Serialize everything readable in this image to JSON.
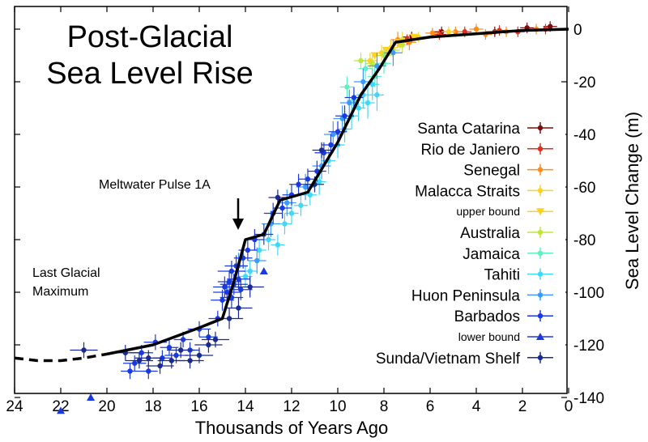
{
  "chart_data": {
    "type": "scatter",
    "title": [
      "Post-Glacial",
      "Sea Level Rise"
    ],
    "xlabel": "Thousands of Years Ago",
    "ylabel": "Sea Level Change (m)",
    "xlim": [
      24,
      0
    ],
    "ylim": [
      -150,
      5
    ],
    "x_ticks": [
      24,
      22,
      20,
      18,
      16,
      14,
      12,
      10,
      8,
      6,
      4,
      2,
      0
    ],
    "y_ticks": [
      0,
      -20,
      -40,
      -60,
      -80,
      -100,
      -120,
      -140
    ],
    "grid": false,
    "legend_placement": "right",
    "annotations": [
      {
        "name": "meltwater-pulse",
        "text": "Meltwater Pulse 1A",
        "x": 14.5,
        "y": -78
      },
      {
        "name": "last-glacial",
        "lines": [
          "Last Glacial",
          "Maximum"
        ]
      }
    ],
    "trend": {
      "dashed": [
        [
          24,
          -125
        ],
        [
          23,
          -126
        ],
        [
          22,
          -126
        ],
        [
          21,
          -125
        ],
        [
          20,
          -123.5
        ]
      ],
      "solid": [
        [
          20,
          -123.5
        ],
        [
          18,
          -120
        ],
        [
          16,
          -113.5
        ],
        [
          15,
          -110
        ],
        [
          14.5,
          -96
        ],
        [
          14,
          -80
        ],
        [
          13.2,
          -78
        ],
        [
          12.5,
          -65
        ],
        [
          11.3,
          -62
        ],
        [
          10,
          -43
        ],
        [
          9,
          -25
        ],
        [
          8.2,
          -15
        ],
        [
          7.5,
          -5
        ],
        [
          6,
          -3
        ],
        [
          2,
          -0.5
        ],
        [
          0,
          0
        ]
      ]
    },
    "series": [
      {
        "name": "Santa Catarina",
        "color": "#7a0f0f",
        "marker": "circle",
        "points": [
          [
            6.8,
            -3,
            0.4,
            2
          ],
          [
            5.5,
            -1,
            0.4,
            2
          ],
          [
            3.2,
            -1,
            0.4,
            2
          ],
          [
            1.8,
            0.5,
            0.3,
            2
          ],
          [
            0.8,
            1,
            0.3,
            2
          ]
        ]
      },
      {
        "name": "Rio de Janiero",
        "color": "#e03020",
        "marker": "circle",
        "points": [
          [
            7,
            -4,
            0.3,
            2
          ],
          [
            5.6,
            -2,
            0.3,
            2
          ],
          [
            4.5,
            -1,
            0.3,
            2
          ],
          [
            3,
            -0.5,
            0.3,
            2
          ],
          [
            2.2,
            -1,
            0.3,
            2
          ],
          [
            1,
            0,
            0.3,
            2
          ]
        ]
      },
      {
        "name": "Senegal",
        "color": "#ff8c1a",
        "marker": "circle",
        "points": [
          [
            7.4,
            -4,
            0.3,
            3
          ],
          [
            6.9,
            -5,
            0.3,
            3
          ],
          [
            5.9,
            -1.5,
            0.3,
            2
          ],
          [
            4.9,
            -1,
            0.3,
            2
          ],
          [
            4,
            0,
            0.3,
            2
          ],
          [
            3.6,
            -2,
            0.3,
            2
          ],
          [
            2.7,
            -1,
            0.3,
            2
          ],
          [
            1.4,
            0,
            0.3,
            2
          ]
        ]
      },
      {
        "name": "Malacca Straits",
        "color": "#ffd21f",
        "marker": "circle",
        "points": [
          [
            8.6,
            -12,
            0.3,
            3
          ],
          [
            8.1,
            -9,
            0.3,
            3
          ],
          [
            7.7,
            -7,
            0.3,
            3
          ],
          [
            7.2,
            -4,
            0.3,
            3
          ],
          [
            6.5,
            -3,
            0.3,
            2
          ],
          [
            5.2,
            -1,
            0.3,
            2
          ]
        ]
      },
      {
        "name": "upper bound",
        "color": "#ffd21f",
        "marker": "down",
        "points": [
          [
            8.4,
            -10,
            0,
            0
          ],
          [
            7.9,
            -8,
            0,
            0
          ],
          [
            7.3,
            -6,
            0,
            0
          ],
          [
            6.7,
            -3,
            0,
            0
          ]
        ]
      },
      {
        "name": "Australia",
        "color": "#bfe83a",
        "marker": "circle",
        "points": [
          [
            9,
            -12,
            0.3,
            3
          ],
          [
            8.5,
            -13,
            0.3,
            3
          ],
          [
            8,
            -10,
            0.3,
            3
          ],
          [
            7.6,
            -8,
            0.3,
            3
          ],
          [
            7.2,
            -6,
            0.3,
            3
          ]
        ]
      },
      {
        "name": "Jamaica",
        "color": "#5ef0c0",
        "marker": "circle",
        "points": [
          [
            9.6,
            -22,
            0.3,
            4
          ],
          [
            9.3,
            -27,
            0.3,
            4
          ],
          [
            8.8,
            -15,
            0.3,
            4
          ],
          [
            8.4,
            -18,
            0.3,
            4
          ],
          [
            8,
            -13,
            0.3,
            4
          ]
        ]
      },
      {
        "name": "Tahiti",
        "color": "#40d8f8",
        "marker": "circle",
        "points": [
          [
            14,
            -94,
            0.3,
            4
          ],
          [
            13.8,
            -92,
            0.3,
            4
          ],
          [
            13.4,
            -84,
            0.3,
            4
          ],
          [
            13,
            -80,
            0.3,
            4
          ],
          [
            12.6,
            -82,
            0.3,
            4
          ],
          [
            12.3,
            -74,
            0.3,
            4
          ],
          [
            12,
            -70,
            0.3,
            4
          ],
          [
            11.6,
            -67,
            0.3,
            4
          ],
          [
            11.2,
            -63,
            0.3,
            4
          ],
          [
            10.8,
            -58,
            0.3,
            5
          ],
          [
            10.4,
            -50,
            0.3,
            5
          ],
          [
            10,
            -44,
            0.3,
            5
          ],
          [
            9.7,
            -38,
            0.3,
            5
          ],
          [
            9.4,
            -33,
            0.3,
            5
          ],
          [
            9.1,
            -30,
            0.3,
            5
          ],
          [
            8.9,
            -25,
            0.3,
            5
          ],
          [
            8.7,
            -28,
            0.3,
            6
          ],
          [
            8.5,
            -21,
            0.3,
            6
          ],
          [
            8.3,
            -25,
            0.3,
            6
          ]
        ]
      },
      {
        "name": "Huon Peninsula",
        "color": "#3a9aff",
        "marker": "circle",
        "points": [
          [
            14.3,
            -90,
            0.4,
            5
          ],
          [
            13.5,
            -88,
            0.4,
            5
          ],
          [
            12.9,
            -74,
            0.4,
            5
          ],
          [
            12.2,
            -66,
            0.4,
            5
          ],
          [
            11.4,
            -60,
            0.4,
            5
          ],
          [
            10.7,
            -52,
            0.4,
            5
          ],
          [
            10.2,
            -40,
            0.4,
            5
          ],
          [
            9.8,
            -34,
            0.4,
            5
          ],
          [
            9.5,
            -28,
            0.4,
            5
          ],
          [
            8.9,
            -20,
            0.4,
            5
          ],
          [
            8.3,
            -14,
            0.4,
            5
          ],
          [
            7.6,
            -9,
            0.4,
            5
          ]
        ]
      },
      {
        "name": "Barbados",
        "color": "#1a3ae0",
        "marker": "circle",
        "points": [
          [
            19,
            -130,
            0.4,
            3
          ],
          [
            18.8,
            -127,
            0.5,
            3
          ],
          [
            18.5,
            -123,
            0.5,
            3
          ],
          [
            18.2,
            -130,
            0.4,
            3
          ],
          [
            17.9,
            -119,
            0.5,
            3
          ],
          [
            17.6,
            -125,
            0.4,
            3
          ],
          [
            17.3,
            -121,
            0.4,
            3
          ],
          [
            17,
            -124,
            0.5,
            3
          ],
          [
            16.7,
            -118,
            0.4,
            3
          ],
          [
            16.4,
            -122,
            0.4,
            3
          ],
          [
            16,
            -114,
            0.5,
            3
          ],
          [
            15.6,
            -117,
            0.4,
            3
          ],
          [
            15.2,
            -110,
            0.4,
            3
          ],
          [
            15,
            -103,
            0.5,
            4
          ],
          [
            14.9,
            -98,
            0.5,
            4
          ],
          [
            14.8,
            -100,
            0.6,
            4
          ],
          [
            14.7,
            -96,
            0.5,
            4
          ],
          [
            14.6,
            -92,
            0.6,
            4
          ],
          [
            14.6,
            -102,
            0.5,
            4
          ],
          [
            14.5,
            -97,
            0.6,
            4
          ],
          [
            14.4,
            -90,
            0.5,
            4
          ],
          [
            14.3,
            -95,
            0.5,
            4
          ],
          [
            14.2,
            -99,
            0.5,
            4
          ],
          [
            14.1,
            -87,
            0.4,
            4
          ],
          [
            13.9,
            -84,
            0.4,
            4
          ],
          [
            13.6,
            -80,
            0.4,
            4
          ],
          [
            13.2,
            -78,
            0.4,
            4
          ],
          [
            12.8,
            -70,
            0.4,
            4
          ],
          [
            12.4,
            -68,
            0.4,
            4
          ],
          [
            12,
            -63,
            0.4,
            4
          ],
          [
            11.7,
            -59,
            0.4,
            4
          ],
          [
            11.3,
            -57,
            0.4,
            4
          ],
          [
            10.9,
            -54,
            0.4,
            4
          ],
          [
            10.6,
            -47,
            0.4,
            4
          ],
          [
            10.3,
            -44,
            0.4,
            4
          ],
          [
            10,
            -39,
            0.4,
            4
          ],
          [
            9.7,
            -33,
            0.4,
            4
          ],
          [
            9.3,
            -26,
            0.4,
            4
          ]
        ]
      },
      {
        "name": "lower bound",
        "color": "#1a3ae0",
        "marker": "up",
        "points": [
          [
            22,
            -145,
            0,
            0
          ],
          [
            20.7,
            -140,
            0,
            0
          ],
          [
            13.2,
            -92,
            0,
            0
          ]
        ]
      },
      {
        "name": "Sunda/Vietnam Shelf",
        "color": "#1a2a90",
        "marker": "circle",
        "points": [
          [
            21,
            -122,
            0.6,
            3
          ],
          [
            19.2,
            -123,
            0.6,
            3
          ],
          [
            18.6,
            -126,
            0.6,
            3
          ],
          [
            18.2,
            -125,
            0.6,
            3
          ],
          [
            17.7,
            -128,
            0.6,
            3
          ],
          [
            17.2,
            -126,
            0.6,
            3
          ],
          [
            16.8,
            -122,
            0.6,
            3
          ],
          [
            16.4,
            -126,
            0.6,
            3
          ],
          [
            16,
            -124,
            0.6,
            3
          ],
          [
            15.6,
            -120,
            0.6,
            3
          ],
          [
            15.3,
            -118,
            0.6,
            3
          ],
          [
            14.7,
            -110,
            0.6,
            4
          ],
          [
            14.3,
            -106,
            0.6,
            4
          ],
          [
            13.8,
            -98,
            0.6,
            4
          ],
          [
            12.6,
            -64,
            0.4,
            3
          ],
          [
            11,
            -59,
            0.4,
            3
          ],
          [
            10.7,
            -46,
            0.4,
            3
          ]
        ]
      }
    ]
  }
}
